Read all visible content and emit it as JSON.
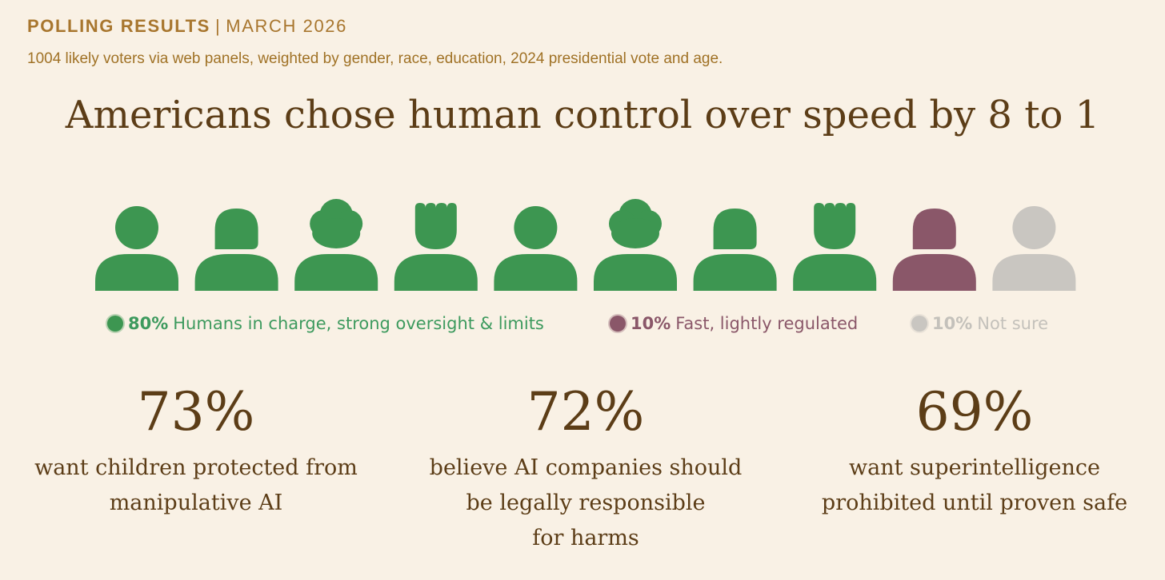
{
  "header": {
    "kicker_label": "POLLING RESULTS",
    "kicker_separator": "|",
    "kicker_date": "MARCH 2026",
    "subtitle": "1004 likely voters via web panels, weighted by gender, race, education, 2024 presidential vote and age."
  },
  "headline": "Americans chose human control over speed by 8 to 1",
  "colors": {
    "background": "#f9f1e5",
    "kicker": "#a8762e",
    "text": "#5c3d17",
    "green": "#3d9651",
    "green_text": "#3d9a5e",
    "maroon": "#8a5769",
    "gray": "#c9c6c1",
    "gray_text": "#c4c1bb"
  },
  "chart_data": [
    {
      "type": "pictogram",
      "title": "",
      "icon_count": 10,
      "icons": [
        "person-icon",
        "person-short-hair-icon",
        "person-curly-hair-icon",
        "person-spiky-hair-icon",
        "person-icon",
        "person-curly-hair-icon",
        "person-short-hair-icon",
        "person-spiky-hair-icon",
        "person-short-hair-icon",
        "person-icon"
      ],
      "series": [
        {
          "name": "Humans in charge, strong oversight & limits",
          "value": 80,
          "value_label": "80%",
          "icons": 8,
          "color": "#3d9651",
          "text_color": "#3d9a5e"
        },
        {
          "name": "Fast, lightly regulated",
          "value": 10,
          "value_label": "10%",
          "icons": 1,
          "color": "#8a5769",
          "text_color": "#8a5769"
        },
        {
          "name": "Not sure",
          "value": 10,
          "value_label": "10%",
          "icons": 1,
          "color": "#c9c6c1",
          "text_color": "#c4c1bb"
        }
      ]
    },
    {
      "type": "stat",
      "items": [
        {
          "value": 73,
          "value_label": "73%",
          "lines": [
            "want children protected from",
            "manipulative AI"
          ]
        },
        {
          "value": 72,
          "value_label": "72%",
          "lines": [
            "believe AI companies should",
            "be legally responsible",
            "for harms"
          ]
        },
        {
          "value": 69,
          "value_label": "69%",
          "lines": [
            "want superintelligence",
            "prohibited until proven safe"
          ]
        }
      ]
    }
  ]
}
